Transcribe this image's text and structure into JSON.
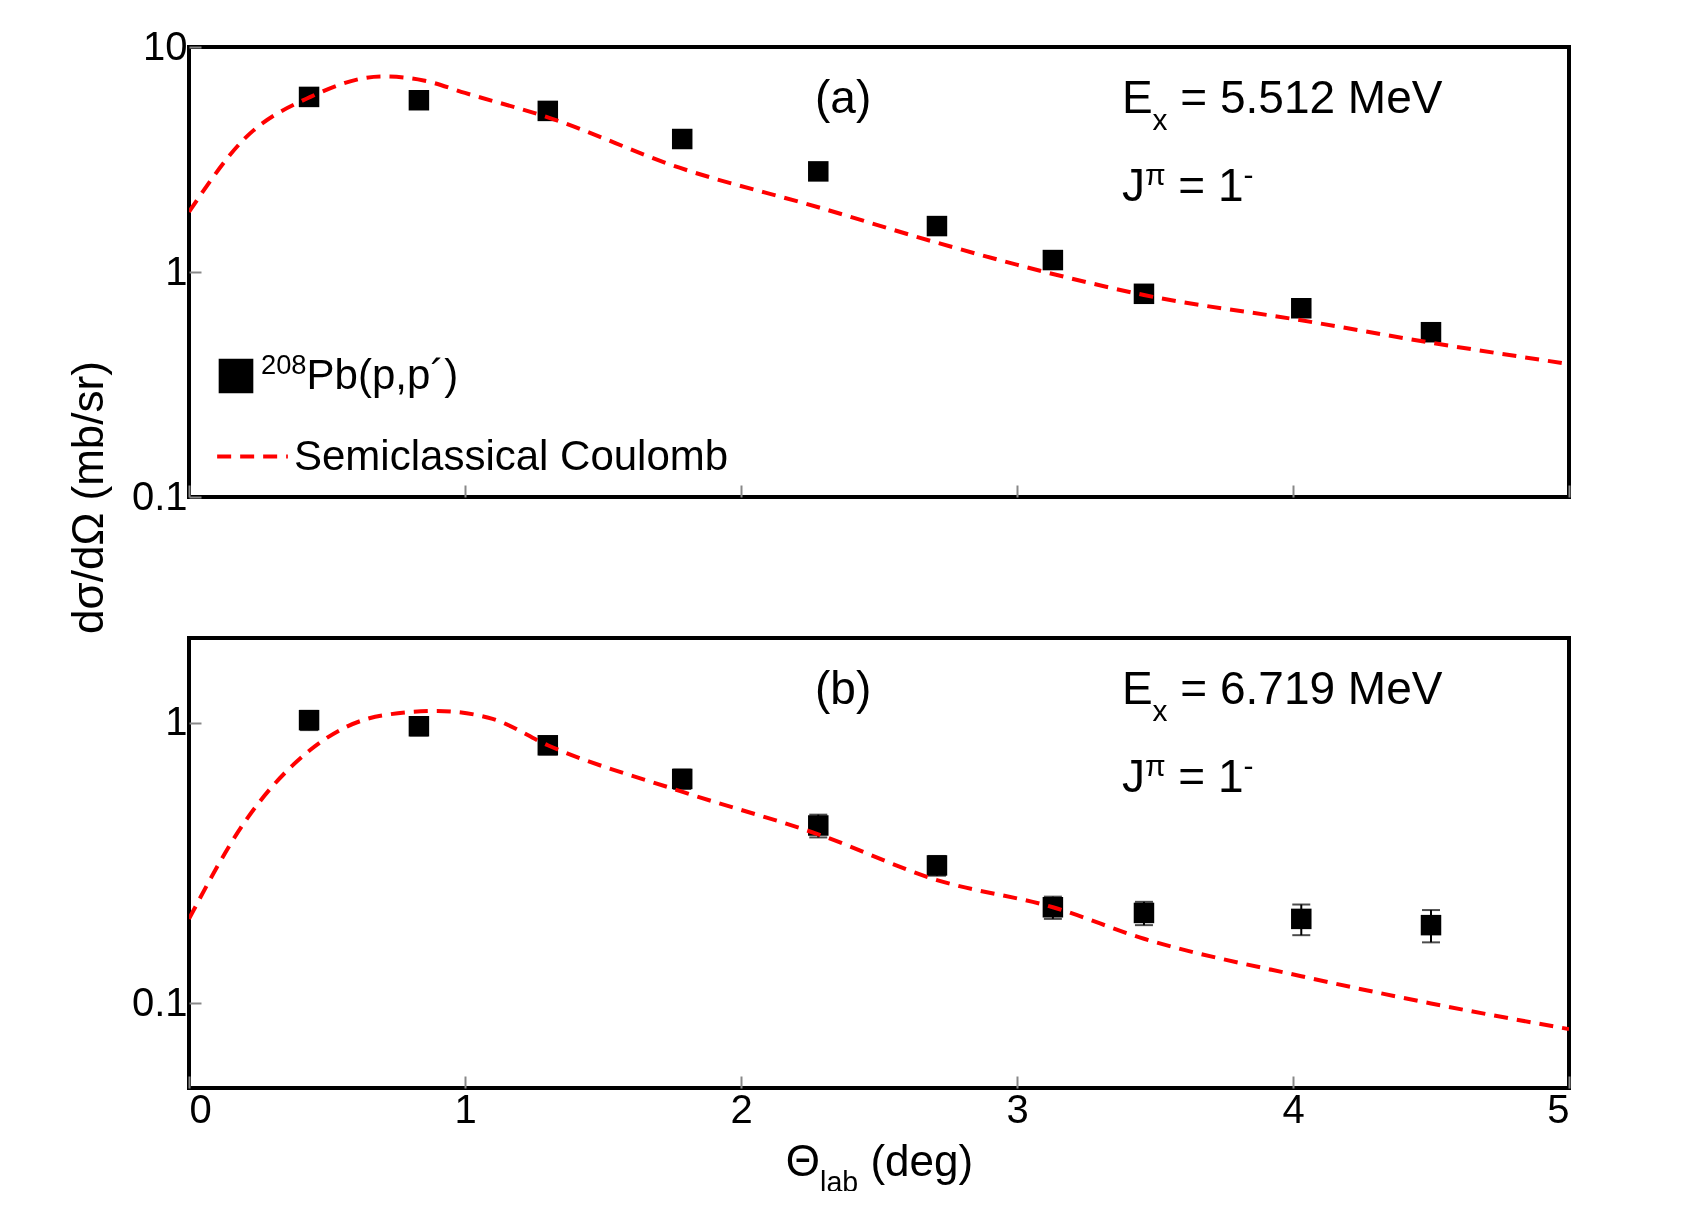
{
  "chart_data": [
    {
      "type": "scatter",
      "ylabel": "dσ/dΩ (mb/sr)",
      "xlim": [
        0,
        5
      ],
      "xticks": [
        0,
        1,
        2,
        3,
        4,
        5
      ],
      "ylim": [
        0.1,
        10
      ],
      "yticks": [
        0.1,
        1,
        10
      ],
      "log": "y",
      "tick_labels": "y",
      "legend": "bottom left",
      "annotations": [
        "(a)",
        "E$_{x}$ = 5.512 MeV",
        "J$^{π}$ = 1$^{-}$"
      ],
      "series": [
        {
          "name": "$^{208}$Pb(p,p´)",
          "marker": "square",
          "color": "#000000",
          "x": [
            0.435,
            0.833,
            1.3,
            1.787,
            2.28,
            2.71,
            3.13,
            3.46,
            4.03,
            4.5
          ],
          "values": [
            6.0,
            5.8,
            5.2,
            3.9,
            2.8,
            1.6,
            1.13,
            0.8,
            0.69,
            0.54
          ]
        },
        {
          "name": "Semiclassical Coulomb",
          "type": "line",
          "line_style": "dashed",
          "color": "#ff0000",
          "x": [
            0,
            0.2,
            0.44,
            0.7,
            0.85,
            1,
            1.3,
            1.78,
            2.28,
            2.71,
            3.13,
            3.46,
            4.03,
            4.5,
            5
          ],
          "values": [
            1.85,
            3.9,
            6.0,
            7.4,
            7.1,
            6.25,
            4.87,
            2.9,
            1.94,
            1.35,
            0.98,
            0.79,
            0.61,
            0.485,
            0.39
          ]
        }
      ]
    },
    {
      "type": "scatter",
      "xlabel": "Θ$_{lab}$ (deg)",
      "xlim": [
        0,
        5
      ],
      "xticks": [
        0,
        1,
        2,
        3,
        4,
        5
      ],
      "ylim": [
        0.05,
        2
      ],
      "yticks": [
        0.1,
        1
      ],
      "log": "y",
      "annotations": [
        "(b)",
        "E$_{x}$ = 6.719 MeV",
        "J$^{π}$ = 1$^{-}$"
      ],
      "series": [
        {
          "marker": "square",
          "color": "#000000",
          "x": [
            0.435,
            0.833,
            1.3,
            1.787,
            2.28,
            2.71,
            3.13,
            3.46,
            4.03,
            4.5
          ],
          "values": [
            1.02,
            0.97,
            0.83,
            0.63,
            0.43,
            0.31,
            0.22,
            0.21,
            0.2,
            0.19
          ],
          "errors": [
            0.08,
            0.07,
            0.06,
            0.05,
            0.04,
            0.025,
            0.02,
            0.02,
            0.025,
            0.025
          ]
        },
        {
          "type": "line",
          "line_style": "dashed",
          "color": "#ff0000",
          "x": [
            0,
            0.2,
            0.44,
            0.7,
            0.9,
            1.1,
            1.3,
            1.78,
            2.28,
            2.71,
            3.13,
            3.46,
            4.03,
            4.5,
            5
          ],
          "values": [
            0.2,
            0.44,
            0.8,
            1.06,
            1.1,
            1.03,
            0.83,
            0.57,
            0.4,
            0.275,
            0.22,
            0.17,
            0.125,
            0.1,
            0.081
          ]
        }
      ]
    }
  ]
}
